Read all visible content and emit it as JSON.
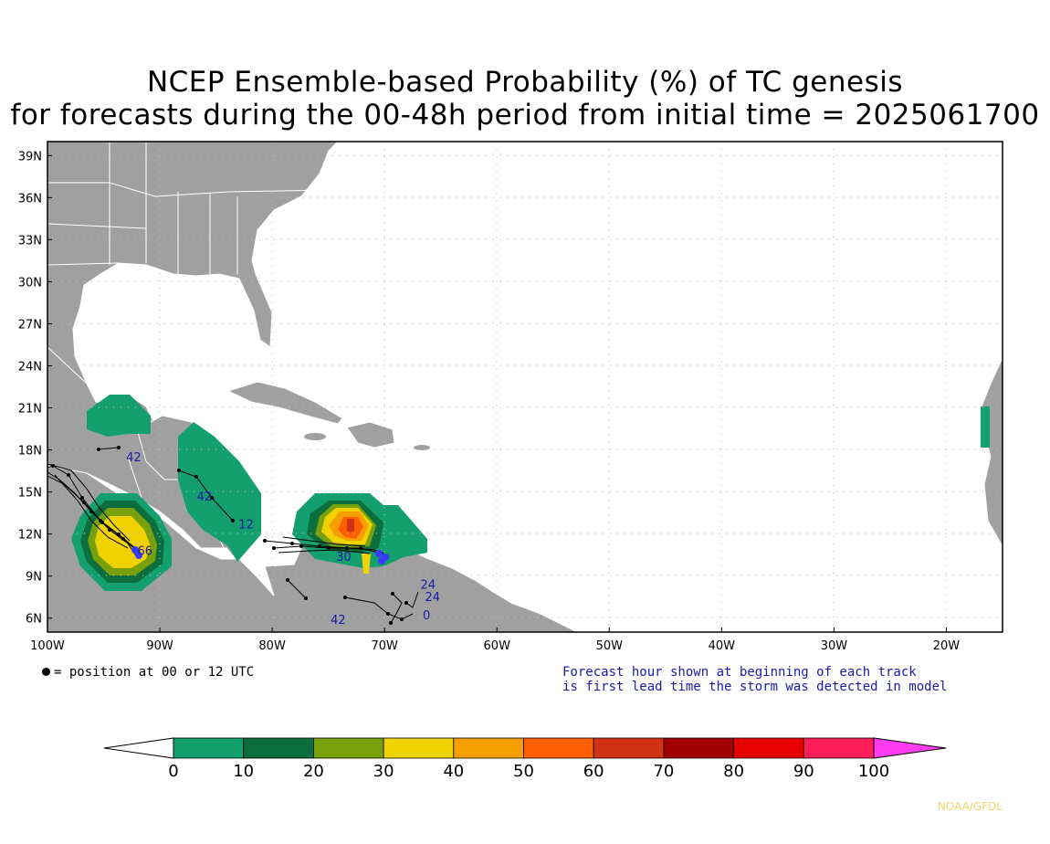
{
  "title": {
    "line1": "NCEP Ensemble-based Probability (%) of TC genesis",
    "line2": "for forecasts during the 00-48h period from initial time = 2025061700"
  },
  "map": {
    "lat_labels": [
      "39N",
      "36N",
      "33N",
      "30N",
      "27N",
      "24N",
      "21N",
      "18N",
      "15N",
      "12N",
      "9N",
      "6N"
    ],
    "lon_labels": [
      "100W",
      "90W",
      "80W",
      "70W",
      "60W",
      "50W",
      "40W",
      "30W",
      "20W"
    ],
    "extent": {
      "lon_min": -100,
      "lon_max": -15,
      "lat_min": 5,
      "lat_max": 40
    },
    "track_labels": [
      {
        "text": "42",
        "lon": -93.0,
        "lat": 17.2
      },
      {
        "text": "42",
        "lon": -86.7,
        "lat": 14.4
      },
      {
        "text": "12",
        "lon": -83.0,
        "lat": 12.4
      },
      {
        "text": "30",
        "lon": -74.3,
        "lat": 10.1
      },
      {
        "text": "24",
        "lon": -66.8,
        "lat": 8.1
      },
      {
        "text": "24",
        "lon": -66.4,
        "lat": 7.2
      },
      {
        "text": "0",
        "lon": -66.6,
        "lat": 5.9
      },
      {
        "text": "42",
        "lon": -74.8,
        "lat": 5.6
      },
      {
        "text": "66",
        "lon": -92.0,
        "lat": 10.5
      }
    ]
  },
  "legend": {
    "dot_text": "= position at 00 or 12 UTC",
    "note_line1": "Forecast hour shown at beginning of each track",
    "note_line2": "is first lead time the storm was detected in model"
  },
  "colorbar": {
    "labels": [
      "0",
      "10",
      "20",
      "30",
      "40",
      "50",
      "60",
      "70",
      "80",
      "90",
      "100"
    ],
    "colors": [
      "#ffffff",
      "#14a06e",
      "#0c6e3c",
      "#78a00a",
      "#f0d200",
      "#f5a000",
      "#ff5f00",
      "#d23214",
      "#a00000",
      "#e60000",
      "#ff1e5a",
      "#ff3cf0"
    ]
  },
  "credit": "NOAA/GFDL"
}
